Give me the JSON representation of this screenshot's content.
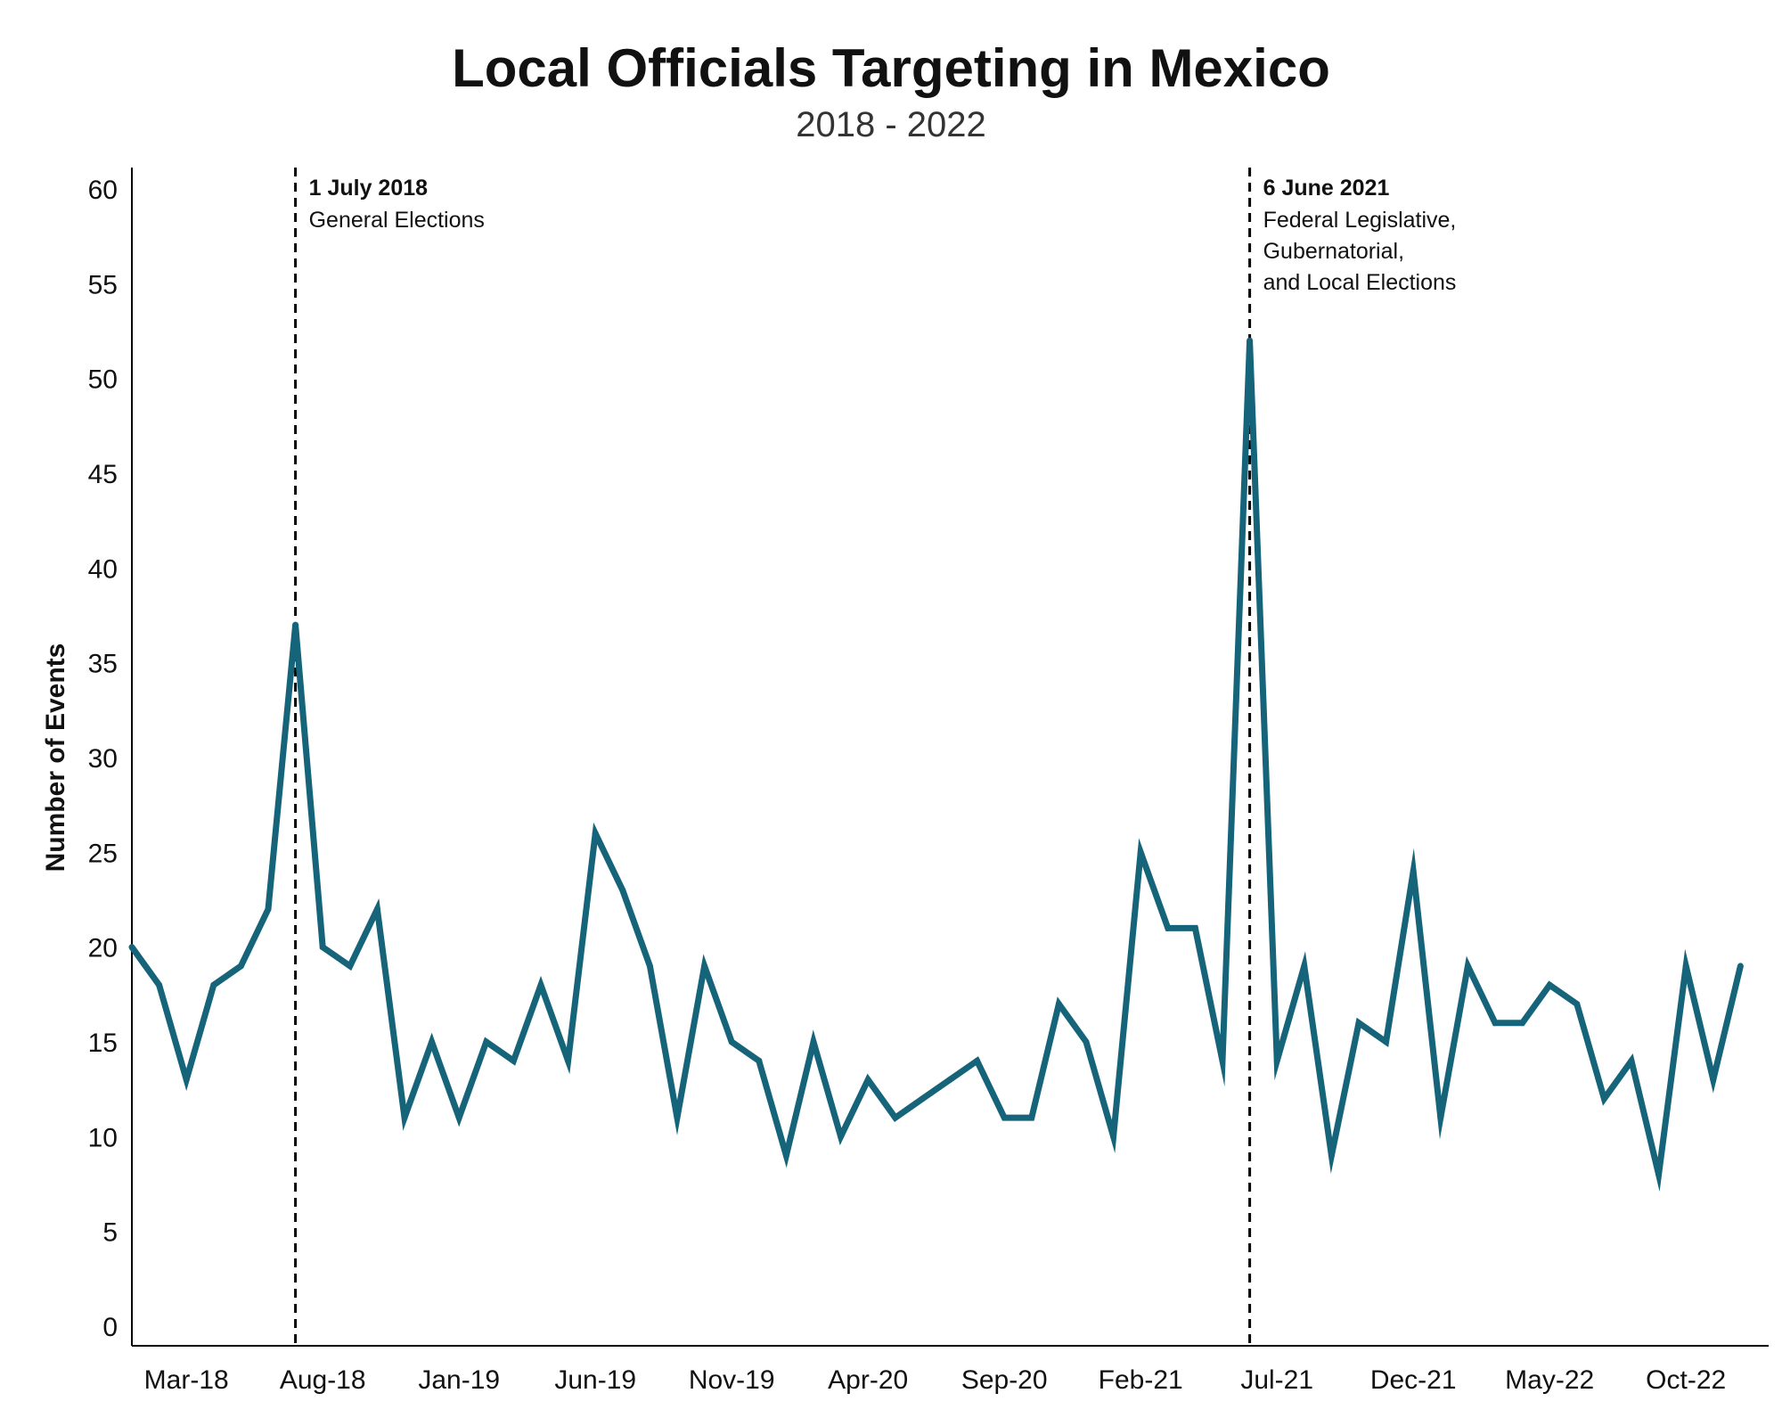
{
  "chart_data": {
    "type": "line",
    "title": "Local Officials Targeting in Mexico",
    "subtitle": "2018 - 2022",
    "ylabel": "Number of Events",
    "xlabel": "",
    "ylim": [
      0,
      60
    ],
    "yticks": [
      0,
      5,
      10,
      15,
      20,
      25,
      30,
      35,
      40,
      45,
      50,
      55,
      60
    ],
    "grid": false,
    "line_color": "#16647a",
    "x_tick_labels": [
      {
        "label": "Mar-18",
        "index": 2
      },
      {
        "label": "Aug-18",
        "index": 7
      },
      {
        "label": "Jan-19",
        "index": 12
      },
      {
        "label": "Jun-19",
        "index": 17
      },
      {
        "label": "Nov-19",
        "index": 22
      },
      {
        "label": "Apr-20",
        "index": 27
      },
      {
        "label": "Sep-20",
        "index": 32
      },
      {
        "label": "Feb-21",
        "index": 37
      },
      {
        "label": "Jul-21",
        "index": 42
      },
      {
        "label": "Dec-21",
        "index": 47
      },
      {
        "label": "May-22",
        "index": 52
      },
      {
        "label": "Oct-22",
        "index": 57
      }
    ],
    "series": [
      {
        "values": [
          20,
          18,
          13,
          18,
          19,
          22,
          37,
          20,
          19,
          22,
          11,
          15,
          11,
          15,
          14,
          18,
          14,
          26,
          23,
          19,
          11,
          19,
          15,
          14,
          9,
          15,
          10,
          13,
          11,
          12,
          13,
          14,
          11,
          11,
          17,
          15,
          10,
          25,
          21,
          21,
          14,
          52,
          14,
          19,
          9,
          16,
          15,
          24,
          11,
          19,
          16,
          16,
          18,
          17,
          12,
          14,
          8,
          19,
          13,
          19
        ]
      }
    ],
    "annotations": [
      {
        "at_index": 6,
        "date": "1 July 2018",
        "text": [
          "General Elections"
        ]
      },
      {
        "at_index": 41,
        "date": "6 June 2021",
        "text": [
          "Federal Legislative,",
          "Gubernatorial,",
          "and Local Elections"
        ]
      }
    ]
  }
}
